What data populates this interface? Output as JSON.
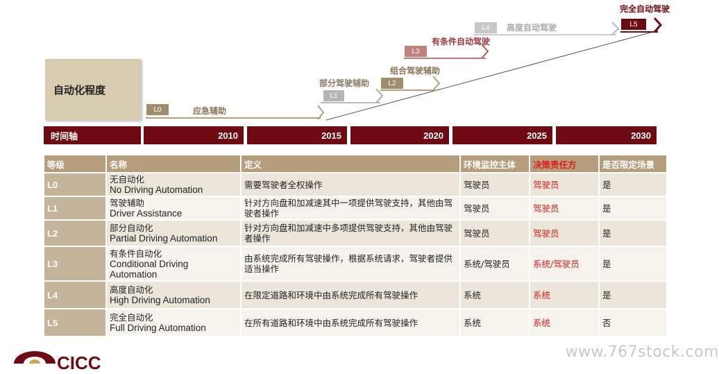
{
  "diagram": {
    "axis_label": "自动化程度",
    "levels": [
      {
        "code": "L0",
        "name": "应急辅助"
      },
      {
        "code": "L1",
        "name": "部分驾驶辅助"
      },
      {
        "code": "L2",
        "name": "组合驾驶辅助"
      },
      {
        "code": "L3",
        "name": "有条件自动驾驶"
      },
      {
        "code": "L4",
        "name": "高度自动驾驶"
      },
      {
        "code": "L5",
        "name": "完全自动驾驶"
      }
    ],
    "timeline_label": "时间轴",
    "years": [
      "2010",
      "2015",
      "2020",
      "2025",
      "2030"
    ]
  },
  "table": {
    "headers": [
      "等级",
      "名称",
      "定义",
      "环境监控主体",
      "决策责任方",
      "是否限定场景"
    ],
    "rows": [
      {
        "level": "L0",
        "name_cn": "无自动化",
        "name_en": "No Driving Automation",
        "definition": "需要驾驶者全权操作",
        "monitor": "驾驶员",
        "responsible": "驾驶员",
        "limited": "是"
      },
      {
        "level": "L1",
        "name_cn": "驾驶辅助",
        "name_en": "Driver Assistance",
        "definition": "针对方向盘和加减速其中一项提供驾驶支持，其他由驾驶者操作",
        "monitor": "驾驶员",
        "responsible": "驾驶员",
        "limited": "是"
      },
      {
        "level": "L2",
        "name_cn": "部分自动化",
        "name_en": "Partial Driving Automation",
        "definition": "针对方向盘和加减速中多项提供驾驶支持，其他由驾驶者操作",
        "monitor": "驾驶员",
        "responsible": "驾驶员",
        "limited": "是"
      },
      {
        "level": "L3",
        "name_cn": "有条件自动化",
        "name_en": "Conditional Driving Automation",
        "definition": "由系统完成所有驾驶操作，根据系统请求，驾驶者提供适当操作",
        "monitor": "系统/驾驶员",
        "responsible": "系统/驾驶员",
        "limited": "是"
      },
      {
        "level": "L4",
        "name_cn": "高度自动化",
        "name_en": "High Driving Automation",
        "definition": "在限定道路和环境中由系统完成所有驾驶操作",
        "monitor": "系统",
        "responsible": "系统",
        "limited": "是"
      },
      {
        "level": "L5",
        "name_cn": "完全自动化",
        "name_en": "Full Driving Automation",
        "definition": "在所有道路和环境中由系统完成所有驾驶操作",
        "monitor": "系统",
        "responsible": "系统",
        "limited": "否"
      }
    ]
  },
  "footer": {
    "logo_text": "CICC",
    "watermark": "www.767stock.com"
  },
  "colors": {
    "dark_red": "#6e0b12",
    "tan": "#b69e7d",
    "red_text": "#e02020"
  }
}
